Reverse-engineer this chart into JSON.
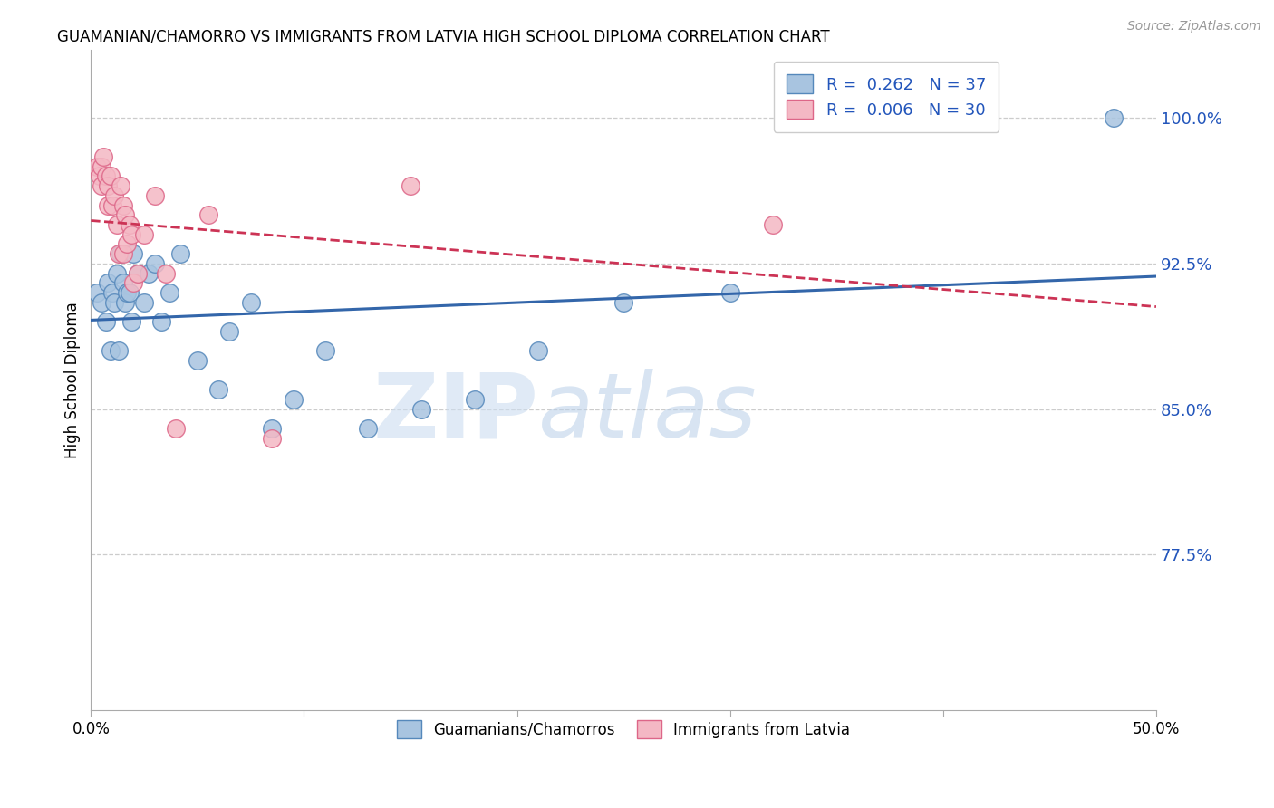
{
  "title": "GUAMANIAN/CHAMORRO VS IMMIGRANTS FROM LATVIA HIGH SCHOOL DIPLOMA CORRELATION CHART",
  "source": "Source: ZipAtlas.com",
  "ylabel": "High School Diploma",
  "yaxis_labels": [
    "77.5%",
    "85.0%",
    "92.5%",
    "100.0%"
  ],
  "yaxis_values": [
    0.775,
    0.85,
    0.925,
    1.0
  ],
  "xlim": [
    0.0,
    0.5
  ],
  "ylim": [
    0.695,
    1.035
  ],
  "blue_R": 0.262,
  "blue_N": 37,
  "pink_R": 0.006,
  "pink_N": 30,
  "blue_color": "#a8c4e0",
  "blue_edge": "#5588bb",
  "pink_color": "#f4b8c4",
  "pink_edge": "#dd6688",
  "blue_line_color": "#3366aa",
  "pink_line_color": "#cc3355",
  "legend_label_blue": "Guamanians/Chamorros",
  "legend_label_pink": "Immigrants from Latvia",
  "watermark_zip": "ZIP",
  "watermark_atlas": "atlas",
  "blue_x": [
    0.003,
    0.005,
    0.007,
    0.008,
    0.009,
    0.01,
    0.011,
    0.012,
    0.013,
    0.014,
    0.015,
    0.016,
    0.017,
    0.018,
    0.019,
    0.02,
    0.022,
    0.025,
    0.027,
    0.03,
    0.033,
    0.037,
    0.042,
    0.05,
    0.06,
    0.065,
    0.075,
    0.085,
    0.095,
    0.11,
    0.13,
    0.155,
    0.18,
    0.21,
    0.25,
    0.3,
    0.48
  ],
  "blue_y": [
    0.91,
    0.905,
    0.895,
    0.915,
    0.88,
    0.91,
    0.905,
    0.92,
    0.88,
    0.93,
    0.915,
    0.905,
    0.91,
    0.91,
    0.895,
    0.93,
    0.92,
    0.905,
    0.92,
    0.925,
    0.895,
    0.91,
    0.93,
    0.875,
    0.86,
    0.89,
    0.905,
    0.84,
    0.855,
    0.88,
    0.84,
    0.85,
    0.855,
    0.88,
    0.905,
    0.91,
    1.0
  ],
  "pink_x": [
    0.003,
    0.004,
    0.005,
    0.005,
    0.006,
    0.007,
    0.008,
    0.008,
    0.009,
    0.01,
    0.011,
    0.012,
    0.013,
    0.014,
    0.015,
    0.015,
    0.016,
    0.017,
    0.018,
    0.019,
    0.02,
    0.022,
    0.025,
    0.03,
    0.035,
    0.04,
    0.055,
    0.085,
    0.15,
    0.32
  ],
  "pink_y": [
    0.975,
    0.97,
    0.965,
    0.975,
    0.98,
    0.97,
    0.955,
    0.965,
    0.97,
    0.955,
    0.96,
    0.945,
    0.93,
    0.965,
    0.955,
    0.93,
    0.95,
    0.935,
    0.945,
    0.94,
    0.915,
    0.92,
    0.94,
    0.96,
    0.92,
    0.84,
    0.95,
    0.835,
    0.965,
    0.945
  ],
  "dashed_line_color": "#cccccc"
}
